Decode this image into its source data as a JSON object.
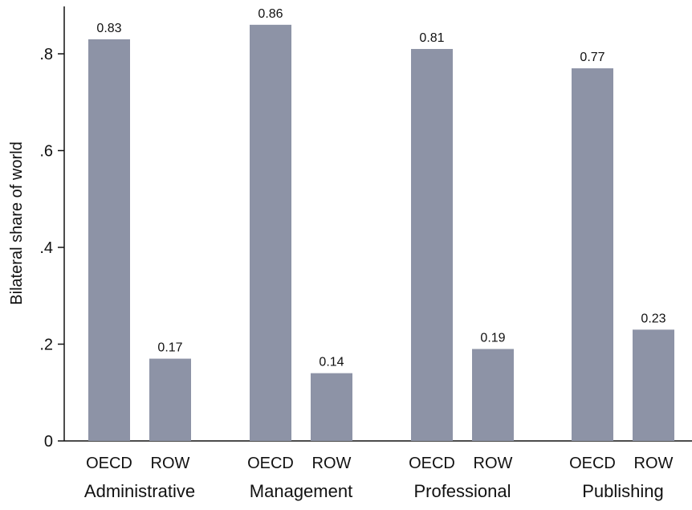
{
  "chart_data": {
    "type": "bar",
    "title": "",
    "ylabel": "Bilateral share of world",
    "ylim": [
      0,
      0.9
    ],
    "yticks": [
      {
        "value": 0,
        "label": "0"
      },
      {
        "value": 0.2,
        "label": ".2"
      },
      {
        "value": 0.4,
        "label": ".4"
      },
      {
        "value": 0.6,
        "label": ".6"
      },
      {
        "value": 0.8,
        "label": ".8"
      }
    ],
    "grid": false,
    "legend": "none",
    "bar_color": "#8d93a6",
    "groups": [
      {
        "name": "Administrative",
        "bars": [
          {
            "category": "OECD",
            "value": 0.83,
            "label": "0.83"
          },
          {
            "category": "ROW",
            "value": 0.17,
            "label": "0.17"
          }
        ]
      },
      {
        "name": "Management",
        "bars": [
          {
            "category": "OECD",
            "value": 0.86,
            "label": "0.86"
          },
          {
            "category": "ROW",
            "value": 0.14,
            "label": "0.14"
          }
        ]
      },
      {
        "name": "Professional",
        "bars": [
          {
            "category": "OECD",
            "value": 0.81,
            "label": "0.81"
          },
          {
            "category": "ROW",
            "value": 0.19,
            "label": "0.19"
          }
        ]
      },
      {
        "name": "Publishing",
        "bars": [
          {
            "category": "OECD",
            "value": 0.77,
            "label": "0.77"
          },
          {
            "category": "ROW",
            "value": 0.23,
            "label": "0.23"
          }
        ]
      }
    ]
  }
}
